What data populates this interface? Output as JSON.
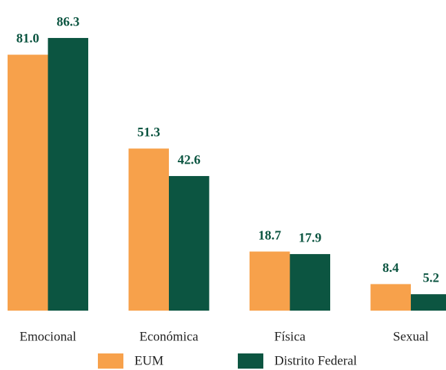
{
  "chart_data": {
    "type": "bar",
    "categories": [
      "Emocional",
      "Económica",
      "Física",
      "Sexual"
    ],
    "series": [
      {
        "name": "EUM",
        "color": "#f7a14b",
        "values": [
          81.0,
          51.3,
          18.7,
          8.4
        ],
        "value_labels": [
          "81.0",
          "51.3",
          "18.7",
          "8.4"
        ]
      },
      {
        "name": "Distrito Federal",
        "color": "#0c5541",
        "values": [
          86.3,
          42.6,
          17.9,
          5.2
        ],
        "value_labels": [
          "86.3",
          "42.6",
          "17.9",
          "5.2"
        ]
      }
    ]
  }
}
